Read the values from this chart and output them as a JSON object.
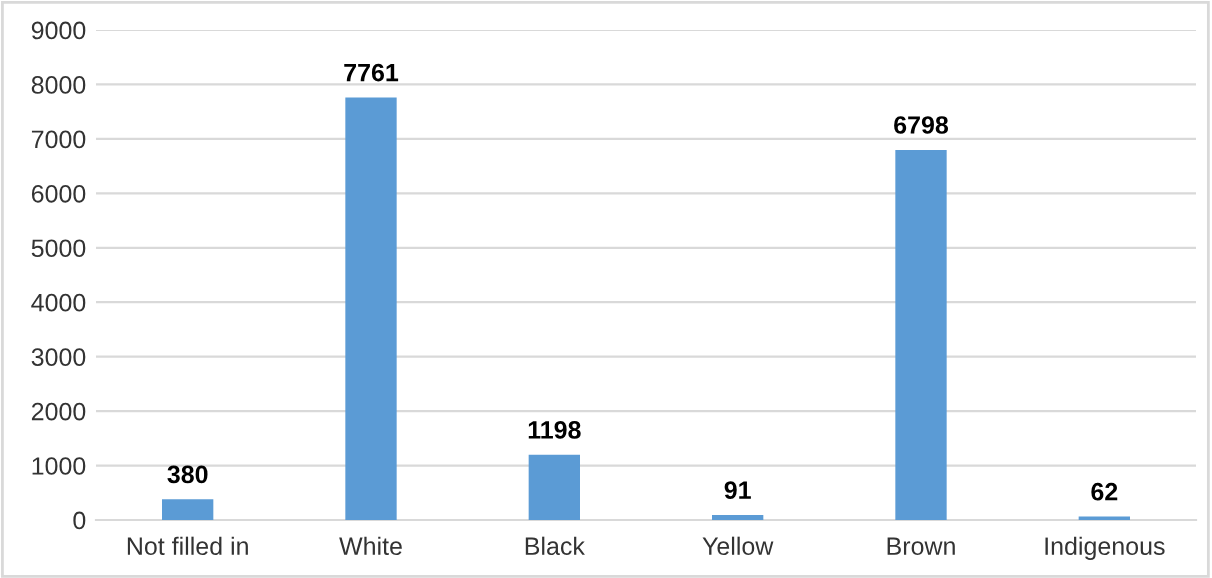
{
  "chart_data": {
    "type": "bar",
    "categories": [
      "Not filled in",
      "White",
      "Black",
      "Yellow",
      "Brown",
      "Indigenous"
    ],
    "values": [
      380,
      7761,
      1198,
      91,
      6798,
      62
    ],
    "color": "#5b9bd5",
    "ylim": [
      0,
      9000
    ],
    "yticks": [
      0,
      1000,
      2000,
      3000,
      4000,
      5000,
      6000,
      7000,
      8000,
      9000
    ],
    "grid": "y",
    "data_labels": true
  }
}
